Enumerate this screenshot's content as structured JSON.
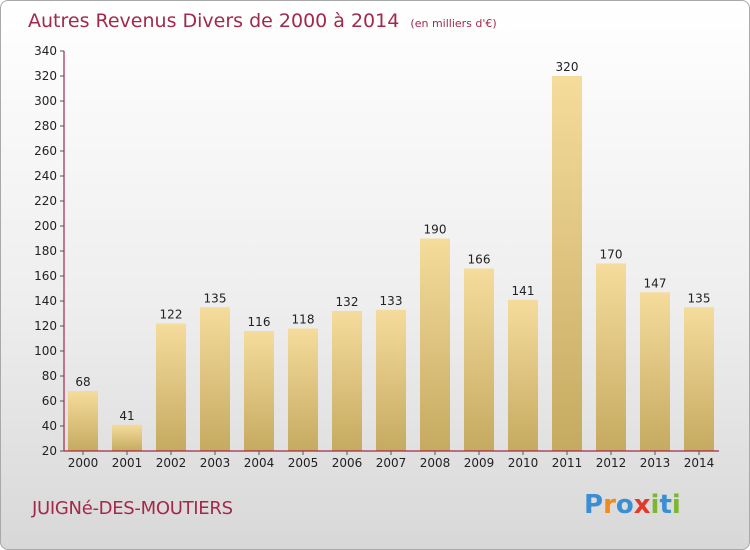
{
  "header": {
    "title": "Autres Revenus Divers de 2000 à 2014",
    "subtitle": "(en milliers d'€)"
  },
  "footer": {
    "commune": "JUIGNé-DES-MOUTIERS",
    "logo_text": "Proxiti"
  },
  "colors": {
    "title": "#a3294a",
    "bar_light": "#f5dc9c",
    "bar_dark": "#c5aa60",
    "axis": "#a3294a",
    "logo": [
      "#3a8fd4",
      "#f08a1c",
      "#3a8fd4",
      "#e23a2a",
      "#7cb82f",
      "#3a8fd4",
      "#7cb82f"
    ]
  },
  "chart_data": {
    "type": "bar",
    "title": "Autres Revenus Divers de 2000 à 2014",
    "subtitle": "(en milliers d'€)",
    "categories": [
      "2000",
      "2001",
      "2002",
      "2003",
      "2004",
      "2005",
      "2006",
      "2007",
      "2008",
      "2009",
      "2010",
      "2011",
      "2012",
      "2013",
      "2014"
    ],
    "values": [
      68,
      41,
      122,
      135,
      116,
      118,
      132,
      133,
      190,
      166,
      141,
      320,
      170,
      147,
      135
    ],
    "ylim": [
      20,
      340
    ],
    "yticks": [
      20,
      40,
      60,
      80,
      100,
      120,
      140,
      160,
      180,
      200,
      220,
      240,
      260,
      280,
      300,
      320,
      340
    ],
    "grid": false,
    "data_labels": true
  }
}
